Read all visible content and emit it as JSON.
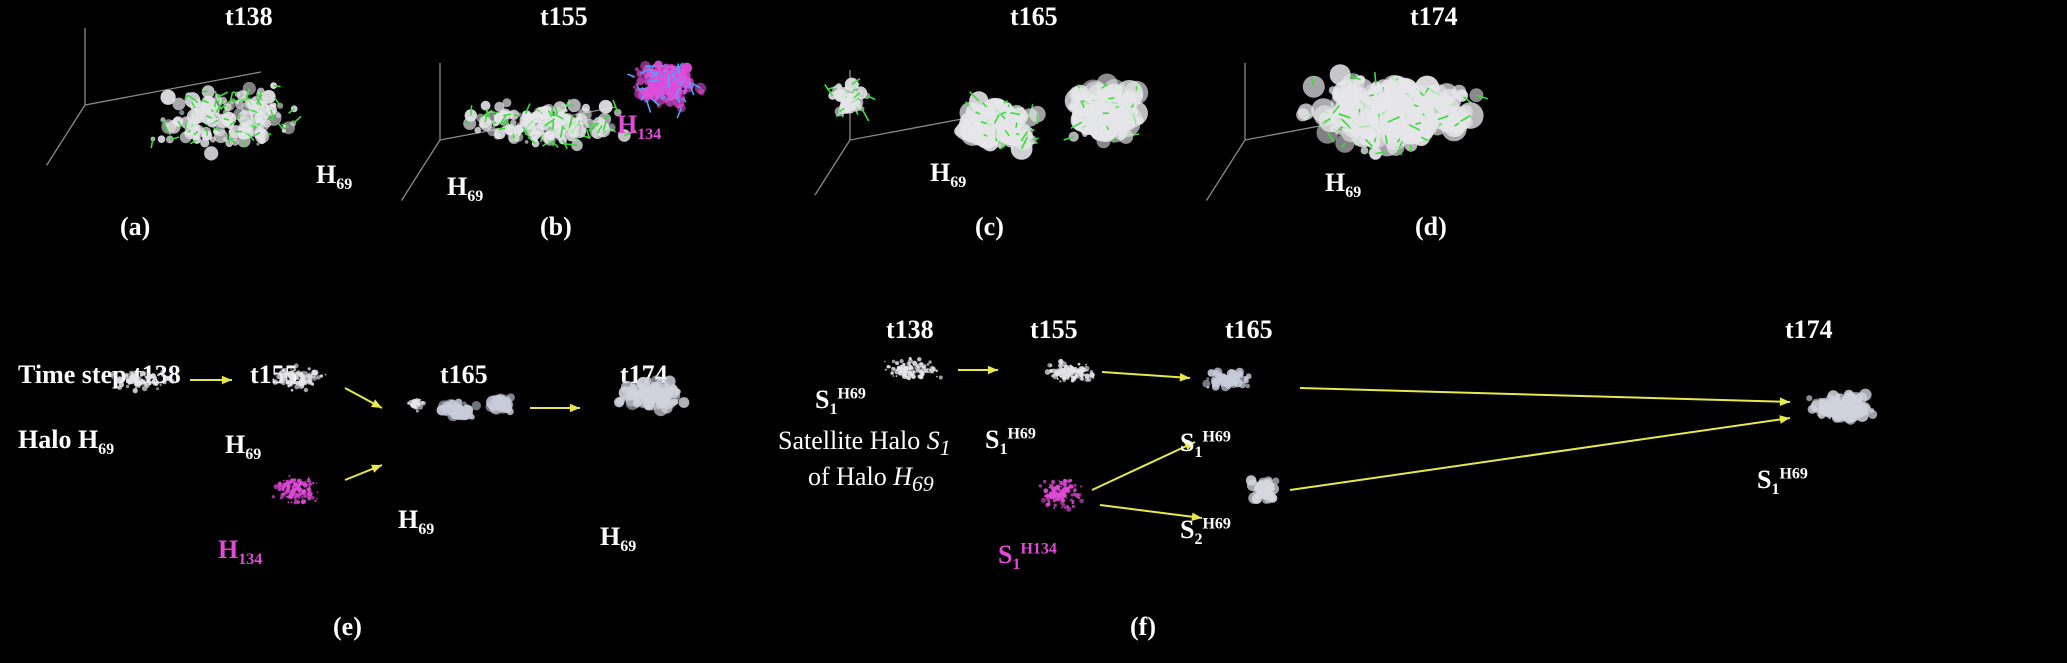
{
  "top_panels": [
    {
      "time": "t138",
      "caption": "(a)",
      "halo_main": "H",
      "halo_main_sub": "69"
    },
    {
      "time": "t155",
      "caption": "(b)",
      "halo_main": "H",
      "halo_main_sub": "69",
      "halo_other": "H",
      "halo_other_sub": "134"
    },
    {
      "time": "t165",
      "caption": "(c)",
      "halo_main": "H",
      "halo_main_sub": "69"
    },
    {
      "time": "t174",
      "caption": "(d)",
      "halo_main": "H",
      "halo_main_sub": "69"
    }
  ],
  "panel_e": {
    "caption": "(e)",
    "first_step": "Time step t138",
    "steps": [
      "t155",
      "t165",
      "t174"
    ],
    "halo_label": "Halo H",
    "halo_label_sub": "69",
    "h69": "H",
    "h69_sub": "69",
    "h134": "H",
    "h134_sub": "134"
  },
  "panel_f": {
    "caption": "(f)",
    "steps": [
      "t138",
      "t155",
      "t165",
      "t174"
    ],
    "s": "S",
    "s1_sub": "1",
    "s2_sub": "2",
    "h69_sup": "H69",
    "h134_sup": "H134",
    "desc_line1": "Satellite Halo ",
    "desc_s": "S",
    "desc_s_sub": "1",
    "desc_line2": "of Halo ",
    "desc_h": "H",
    "desc_h_sub": "69"
  },
  "colors": {
    "background": "#000000",
    "arrow": "#e8e84a",
    "halo_magenta": "#e24ad8",
    "vector_green": "#3ddc3d",
    "particle_white": "#e6e6ea"
  }
}
